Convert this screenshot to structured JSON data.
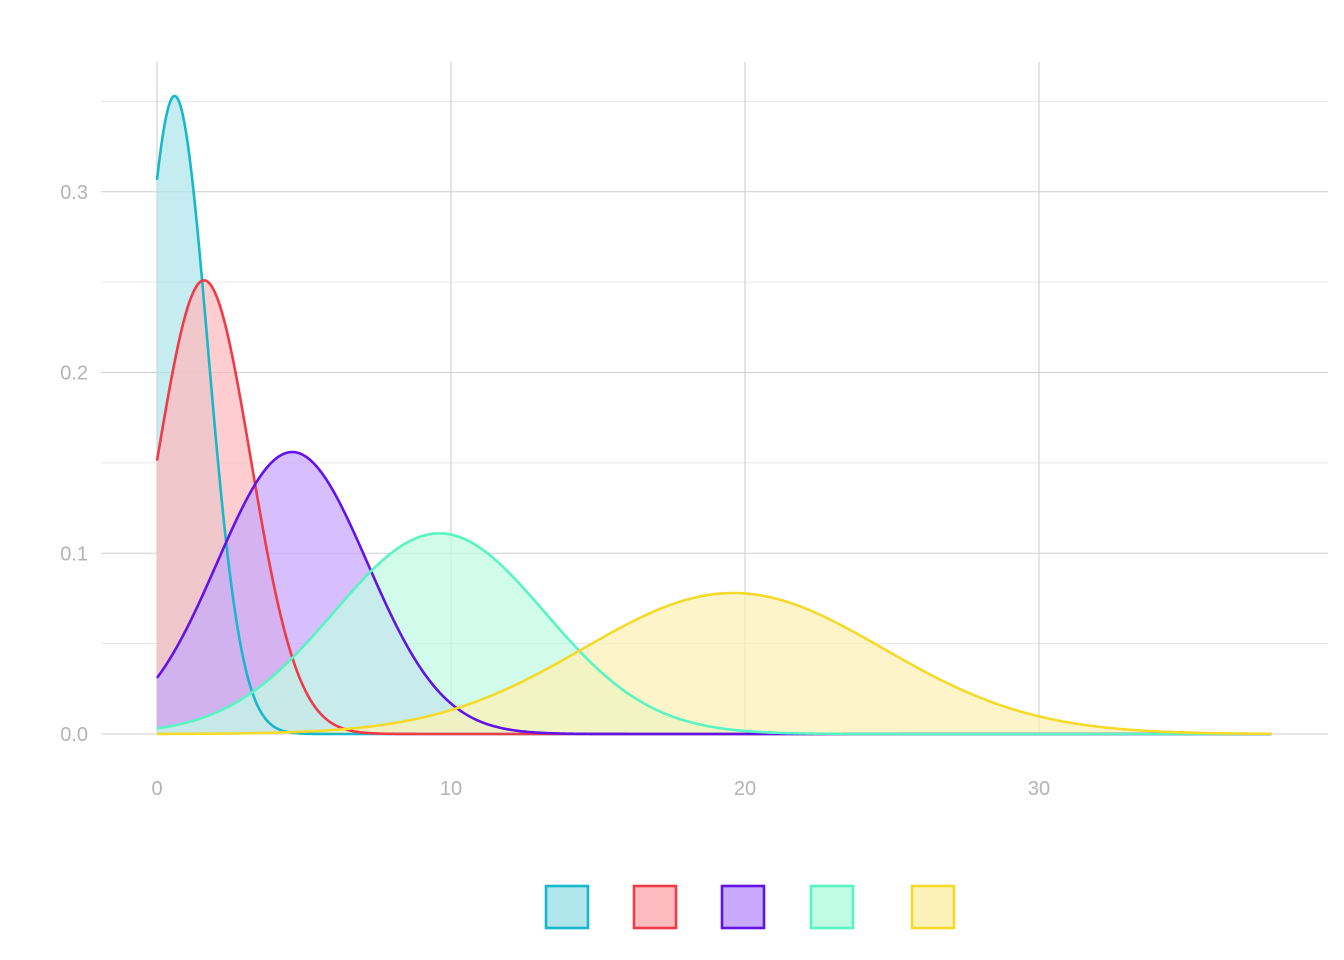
{
  "chart_data": {
    "type": "area",
    "title": "",
    "xlabel": "",
    "ylabel": "",
    "xlim": [
      0,
      37.9
    ],
    "ylim": [
      0,
      0.355
    ],
    "x_ticks": [
      0,
      10,
      20,
      30
    ],
    "x_tick_labels": [
      "0",
      "10",
      "20",
      "30"
    ],
    "y_ticks": [
      0.0,
      0.1,
      0.2,
      0.3
    ],
    "y_tick_labels": [
      "0.0",
      "0.1",
      "0.2",
      "0.3"
    ],
    "grid": true,
    "legend": {
      "placement": "bottom"
    },
    "series": [
      {
        "color": "#17b8cc",
        "fill": "#b1e6ec",
        "peak_x": 0.6,
        "peak_y": 0.353,
        "spread": 1.13,
        "points": [
          [
            0,
            0.315
          ],
          [
            0.6,
            0.353
          ],
          [
            1.6,
            0.26
          ],
          [
            2.5,
            0.15
          ],
          [
            3.5,
            0.06
          ],
          [
            5,
            0.01
          ],
          [
            7,
            0.0
          ],
          [
            37.9,
            0.0
          ]
        ]
      },
      {
        "color": "#ef3a47",
        "fill": "#fdbcbf",
        "peak_x": 1.6,
        "peak_y": 0.251,
        "spread": 1.59,
        "points": [
          [
            0,
            0.136
          ],
          [
            1.6,
            0.251
          ],
          [
            3,
            0.17
          ],
          [
            4.5,
            0.05
          ],
          [
            6,
            0.01
          ],
          [
            8,
            0.0
          ],
          [
            37.9,
            0.0
          ]
        ]
      },
      {
        "color": "#6213e8",
        "fill": "#c8a9fb",
        "peak_x": 4.6,
        "peak_y": 0.156,
        "spread": 2.56,
        "points": [
          [
            0,
            0.022
          ],
          [
            2.5,
            0.1
          ],
          [
            4.6,
            0.156
          ],
          [
            7,
            0.1
          ],
          [
            10,
            0.02
          ],
          [
            14,
            0.0
          ],
          [
            37.9,
            0.0
          ]
        ]
      },
      {
        "color": "#58f5c2",
        "fill": "#c1fbe6",
        "peak_x": 9.6,
        "peak_y": 0.111,
        "spread": 3.59,
        "points": [
          [
            0,
            0.002
          ],
          [
            5,
            0.05
          ],
          [
            9.6,
            0.111
          ],
          [
            14,
            0.055
          ],
          [
            19,
            0.01
          ],
          [
            25,
            0.0
          ],
          [
            37.9,
            0.0
          ]
        ]
      },
      {
        "color": "#f6da2a",
        "fill": "#fcf2b7",
        "peak_x": 19.6,
        "peak_y": 0.078,
        "spread": 5.1,
        "points": [
          [
            0,
            0.0
          ],
          [
            10,
            0.01
          ],
          [
            15,
            0.05
          ],
          [
            19.6,
            0.078
          ],
          [
            25,
            0.05
          ],
          [
            30,
            0.012
          ],
          [
            37.9,
            0.0
          ]
        ]
      }
    ]
  }
}
